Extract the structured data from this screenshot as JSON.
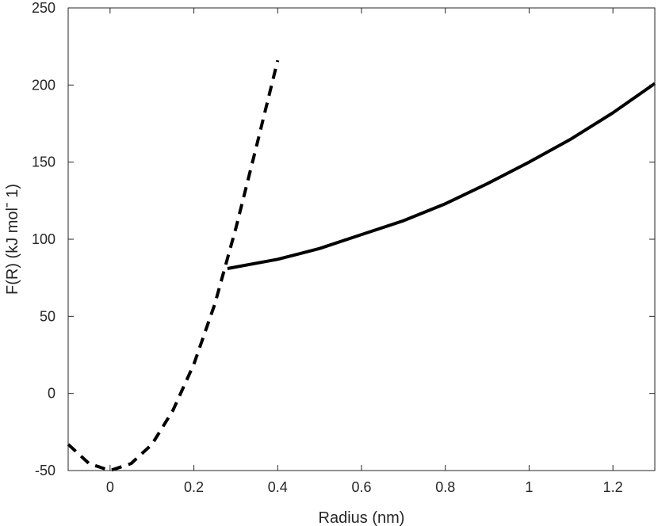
{
  "chart_data": {
    "type": "line",
    "title": "",
    "xlabel": "Radius (nm)",
    "ylabel": "F(R) (kJ molˉ 1)",
    "xlim": [
      -0.1,
      1.3
    ],
    "ylim": [
      -50,
      250
    ],
    "xticks": [
      0,
      0.2,
      0.4,
      0.6,
      0.8,
      1,
      1.2
    ],
    "xtick_labels": [
      "0",
      "0.2",
      "0.4",
      "0.6",
      "0.8",
      "1",
      "1.2"
    ],
    "yticks": [
      -50,
      0,
      50,
      100,
      150,
      200,
      250
    ],
    "ytick_labels": [
      "-50",
      "0",
      "50",
      "100",
      "150",
      "200",
      "250"
    ],
    "grid": false,
    "legend": "none",
    "line_color": "#000000",
    "series": [
      {
        "style": "dashed",
        "x": [
          -0.1,
          -0.05,
          0.0,
          0.05,
          0.1,
          0.15,
          0.2,
          0.25,
          0.3,
          0.35,
          0.4
        ],
        "y": [
          -33,
          -45.5,
          -50,
          -45.5,
          -33,
          -11,
          19,
          58,
          107,
          161,
          216
        ]
      },
      {
        "style": "solid",
        "x": [
          0.28,
          0.4,
          0.5,
          0.6,
          0.7,
          0.8,
          0.9,
          1.0,
          1.1,
          1.2,
          1.3
        ],
        "y": [
          81,
          87,
          94,
          103,
          112,
          123,
          136,
          150,
          165,
          182,
          201
        ]
      }
    ]
  }
}
